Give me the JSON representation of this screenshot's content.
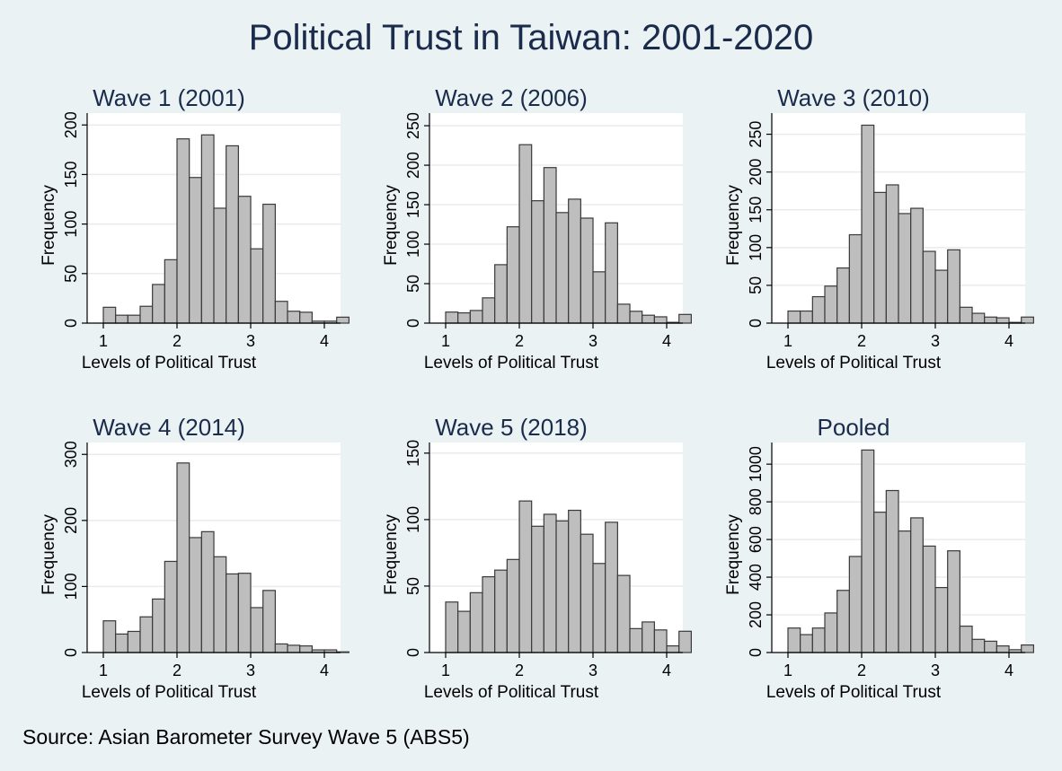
{
  "title": "Political Trust in Taiwan: 2001-2020",
  "source": "Source: Asian Barometer Survey Wave 5 (ABS5)",
  "colors": {
    "background": "#eaf2f3",
    "plot_area": "#ffffff",
    "bar_fill": "#bebebe",
    "bar_stroke": "#3a3a3a",
    "gridline": "#e8ecee",
    "axis": "#000000",
    "title_text": "#1a2b4c"
  },
  "chart_data": [
    {
      "type": "bar",
      "title": "Wave 1 (2001)",
      "xlabel": "Levels of Political Trust",
      "ylabel": "Frequency",
      "xlim": [
        1,
        4
      ],
      "x_ticks": [
        1,
        2,
        3,
        4
      ],
      "y_ticks": [
        0,
        50,
        100,
        150,
        200
      ],
      "ylim": [
        0,
        212
      ],
      "bin_start": 1.0,
      "bin_width": 0.1667,
      "values": [
        16,
        8,
        8,
        17,
        39,
        64,
        186,
        147,
        190,
        116,
        179,
        128,
        75,
        120,
        22,
        12,
        11,
        2,
        2,
        6
      ],
      "grid": true
    },
    {
      "type": "bar",
      "title": "Wave 2 (2006)",
      "xlabel": "Levels of Political Trust",
      "ylabel": "Frequency",
      "xlim": [
        1,
        4
      ],
      "x_ticks": [
        1,
        2,
        3,
        4
      ],
      "y_ticks": [
        0,
        50,
        100,
        150,
        200,
        250
      ],
      "ylim": [
        0,
        266
      ],
      "bin_start": 1.0,
      "bin_width": 0.1667,
      "values": [
        14,
        13,
        16,
        32,
        74,
        122,
        226,
        155,
        197,
        140,
        157,
        133,
        65,
        127,
        24,
        15,
        10,
        8,
        1,
        11
      ],
      "grid": true
    },
    {
      "type": "bar",
      "title": "Wave 3 (2010)",
      "xlabel": "Levels of Political Trust",
      "ylabel": "Frequency",
      "xlim": [
        1,
        4
      ],
      "x_ticks": [
        1,
        2,
        3,
        4
      ],
      "y_ticks": [
        0,
        50,
        100,
        150,
        200,
        250
      ],
      "ylim": [
        0,
        278
      ],
      "bin_start": 1.0,
      "bin_width": 0.1667,
      "values": [
        16,
        16,
        35,
        49,
        73,
        117,
        262,
        173,
        183,
        145,
        152,
        95,
        70,
        97,
        21,
        13,
        8,
        7,
        1,
        8
      ],
      "grid": true
    },
    {
      "type": "bar",
      "title": "Wave 4 (2014)",
      "xlabel": "Levels of Political Trust",
      "ylabel": "Frequency",
      "xlim": [
        1,
        4
      ],
      "x_ticks": [
        1,
        2,
        3,
        4
      ],
      "y_ticks": [
        0,
        100,
        200,
        300
      ],
      "ylim": [
        0,
        318
      ],
      "bin_start": 1.0,
      "bin_width": 0.1667,
      "values": [
        48,
        28,
        32,
        54,
        81,
        138,
        287,
        174,
        183,
        145,
        119,
        120,
        68,
        94,
        13,
        11,
        10,
        4,
        4,
        1
      ],
      "grid": true
    },
    {
      "type": "bar",
      "title": "Wave 5 (2018)",
      "xlabel": "Levels of Political Trust",
      "ylabel": "Frequency",
      "xlim": [
        1,
        4
      ],
      "x_ticks": [
        1,
        2,
        3,
        4
      ],
      "y_ticks": [
        0,
        50,
        100,
        150
      ],
      "ylim": [
        0,
        158
      ],
      "bin_start": 1.0,
      "bin_width": 0.1667,
      "values": [
        38,
        31,
        45,
        57,
        62,
        70,
        114,
        95,
        104,
        99,
        107,
        89,
        67,
        98,
        58,
        18,
        23,
        17,
        5,
        16
      ],
      "grid": true
    },
    {
      "type": "bar",
      "title": "Pooled",
      "xlabel": "Levels of Political Trust",
      "ylabel": "Frequency",
      "xlim": [
        1,
        4
      ],
      "x_ticks": [
        1,
        2,
        3,
        4
      ],
      "y_ticks": [
        0,
        200,
        400,
        600,
        800,
        1000
      ],
      "ylim": [
        0,
        1115
      ],
      "bin_start": 1.0,
      "bin_width": 0.1667,
      "values": [
        130,
        95,
        130,
        210,
        330,
        510,
        1075,
        745,
        860,
        645,
        715,
        565,
        345,
        540,
        140,
        70,
        60,
        35,
        15,
        40
      ],
      "grid": true
    }
  ]
}
